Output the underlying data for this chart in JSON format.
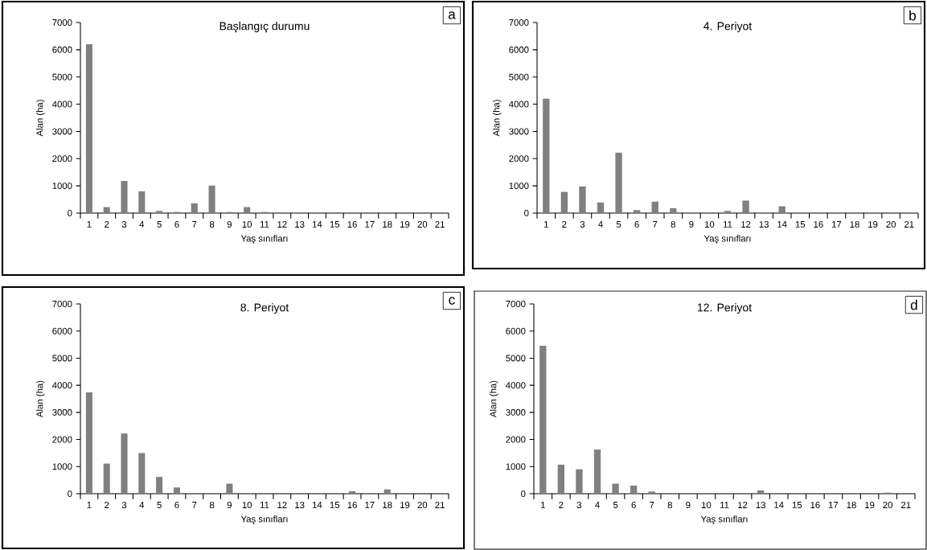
{
  "chart_data": [
    {
      "type": "bar",
      "title": "Başlangıç durumu",
      "xlabel": "Yaş sınıfları",
      "ylabel": "Alan (ha)",
      "annotations": [
        "a"
      ],
      "categories": [
        "1",
        "2",
        "3",
        "4",
        "5",
        "6",
        "7",
        "8",
        "9",
        "10",
        "11",
        "12",
        "13",
        "14",
        "15",
        "16",
        "17",
        "18",
        "19",
        "20",
        "21"
      ],
      "values": [
        6200,
        220,
        1180,
        800,
        80,
        40,
        360,
        1010,
        40,
        220,
        40,
        0,
        0,
        0,
        0,
        0,
        0,
        0,
        0,
        0,
        0
      ],
      "color": "#808080",
      "ylim": [
        0,
        7000
      ],
      "yticks": [
        0,
        1000,
        2000,
        3000,
        4000,
        5000,
        6000,
        7000
      ]
    },
    {
      "type": "bar",
      "title": "4. Periyot",
      "xlabel": "Yaş sınıfları",
      "ylabel": "Alan (ha)",
      "annotations": [
        "b"
      ],
      "categories": [
        "1",
        "2",
        "3",
        "4",
        "5",
        "6",
        "7",
        "8",
        "9",
        "10",
        "11",
        "12",
        "13",
        "14",
        "15",
        "16",
        "17",
        "18",
        "19",
        "20",
        "21"
      ],
      "values": [
        4200,
        780,
        980,
        390,
        2220,
        110,
        420,
        180,
        0,
        0,
        80,
        460,
        0,
        250,
        30,
        0,
        0,
        0,
        0,
        0,
        0
      ],
      "color": "#808080",
      "ylim": [
        0,
        7000
      ],
      "yticks": [
        0,
        1000,
        2000,
        3000,
        4000,
        5000,
        6000,
        7000
      ]
    },
    {
      "type": "bar",
      "title": "8. Periyot",
      "xlabel": "Yaş sınıfları",
      "ylabel": "Alan (ha)",
      "annotations": [
        "c"
      ],
      "categories": [
        "1",
        "2",
        "3",
        "4",
        "5",
        "6",
        "7",
        "8",
        "9",
        "10",
        "11",
        "12",
        "13",
        "14",
        "15",
        "16",
        "17",
        "18",
        "19",
        "20",
        "21"
      ],
      "values": [
        3740,
        1110,
        2220,
        1500,
        620,
        230,
        10,
        10,
        370,
        10,
        10,
        10,
        0,
        0,
        10,
        90,
        0,
        160,
        10,
        0,
        0
      ],
      "color": "#808080",
      "ylim": [
        0,
        7000
      ],
      "yticks": [
        0,
        1000,
        2000,
        3000,
        4000,
        5000,
        6000,
        7000
      ]
    },
    {
      "type": "bar",
      "title": "12. Periyot",
      "xlabel": "Yaş sınıfları",
      "ylabel": "Alan (ha)",
      "annotations": [
        "d"
      ],
      "categories": [
        "1",
        "2",
        "3",
        "4",
        "5",
        "6",
        "7",
        "8",
        "9",
        "10",
        "11",
        "12",
        "13",
        "14",
        "15",
        "16",
        "17",
        "18",
        "19",
        "20",
        "21"
      ],
      "values": [
        5460,
        1070,
        900,
        1630,
        370,
        300,
        80,
        10,
        10,
        0,
        0,
        10,
        120,
        0,
        0,
        10,
        0,
        0,
        10,
        40,
        0
      ],
      "color": "#808080",
      "ylim": [
        0,
        7000
      ],
      "yticks": [
        0,
        1000,
        2000,
        3000,
        4000,
        5000,
        6000,
        7000
      ]
    }
  ]
}
